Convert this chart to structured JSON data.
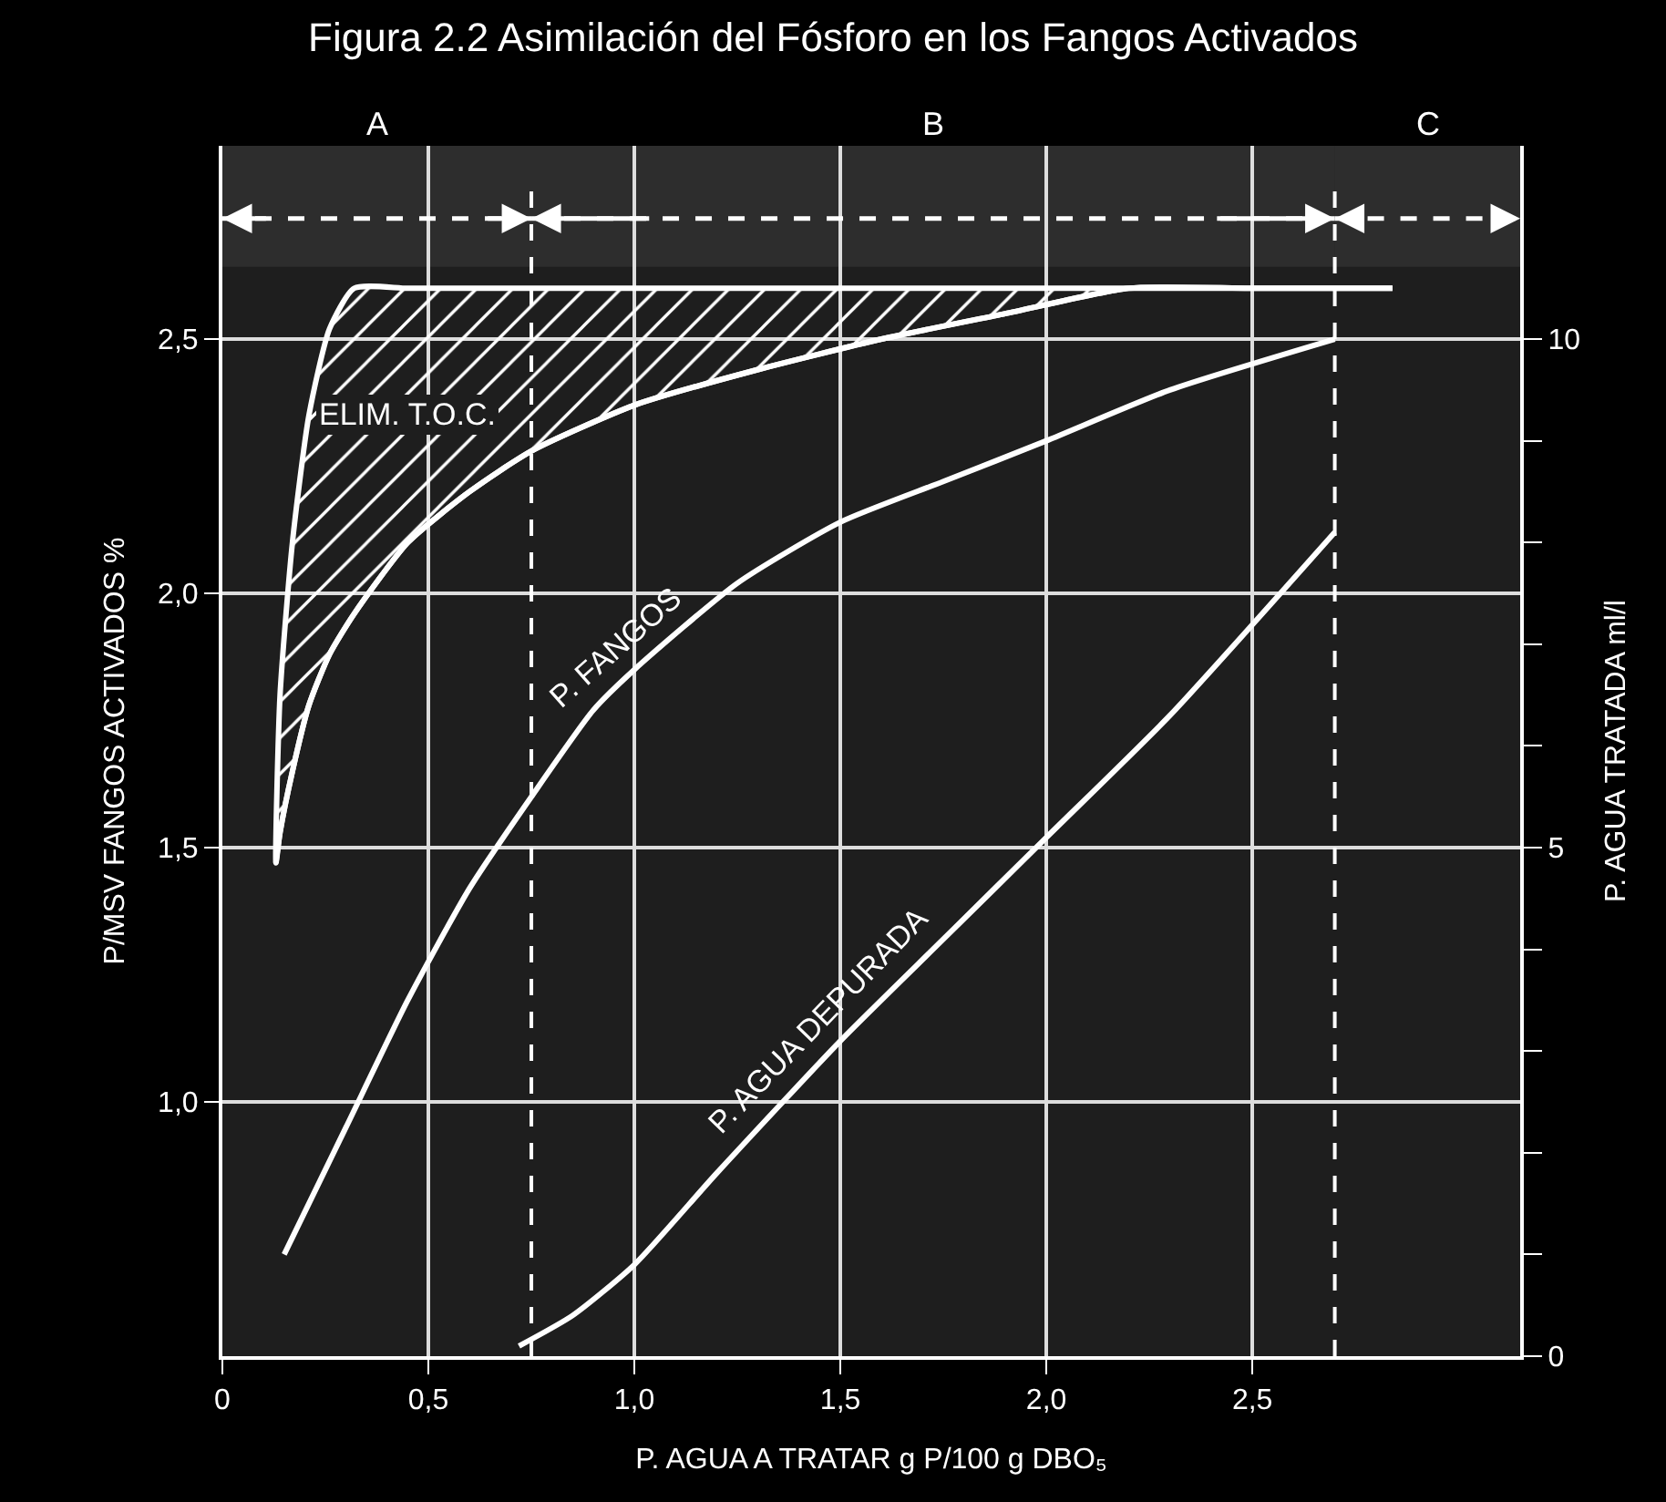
{
  "chart_data": {
    "type": "line",
    "title": "Figura 2.2 Asimilación del Fósforo en los Fangos Activados",
    "xlabel": "P. AGUA A TRATAR g P/100 g DBO₅",
    "ylabel": "P/MSV FANGOS ACTIVADOS %",
    "y2label": "P. AGUA TRATADA ml/l",
    "xlim": [
      0,
      3.15
    ],
    "xticks": [
      0,
      {
        "value": 0.5,
        "label": "0,5"
      },
      {
        "value": 1,
        "label": "1,0"
      },
      {
        "value": 1.5,
        "label": "1,5"
      },
      {
        "value": 2,
        "label": "2,0"
      },
      {
        "value": 2.5,
        "label": "2,5"
      }
    ],
    "ylim": [
      0.5,
      2.88
    ],
    "yticks": [
      {
        "value": 1,
        "label": "1,0"
      },
      {
        "value": 1.5,
        "label": "1,5"
      },
      {
        "value": 2,
        "label": "2,0"
      },
      {
        "value": 2.5,
        "label": "2,5"
      }
    ],
    "y2lim": [
      0,
      11.9
    ],
    "y2ticks": [
      0,
      {
        "value": 1,
        "label": null
      },
      {
        "value": 2,
        "label": null
      },
      {
        "value": 3,
        "label": null
      },
      {
        "value": 4,
        "label": null
      },
      5,
      {
        "value": 6,
        "label": null
      },
      {
        "value": 7,
        "label": null
      },
      {
        "value": 8,
        "label": null
      },
      {
        "value": 9,
        "label": null
      },
      10
    ],
    "grid": true,
    "legend": false,
    "marker": "none",
    "line_style": "solid",
    "series": [
      {
        "name": "ELIM. T.O.C.",
        "color": "#ffffff",
        "x": [
          0.13,
          0.14,
          0.17,
          0.21,
          0.26,
          0.32,
          0.45,
          0.6,
          0.75,
          1.0,
          1.3,
          1.6,
          1.9,
          2.2,
          2.5,
          2.84
        ],
        "values": [
          1.47,
          1.53,
          1.65,
          1.78,
          1.88,
          1.96,
          2.1,
          2.2,
          2.28,
          2.37,
          2.44,
          2.5,
          2.55,
          2.6,
          2.6,
          2.6
        ],
        "lower": [
          1.47,
          1.53,
          1.65,
          1.78,
          1.88,
          1.96,
          2.1,
          2.2,
          2.28,
          2.37,
          2.44,
          2.5,
          2.55,
          2.6,
          2.6,
          2.6
        ],
        "upper": [
          1.47,
          1.8,
          2.1,
          2.35,
          2.52,
          2.6,
          2.6,
          2.6,
          2.6,
          2.6,
          2.6,
          2.6,
          2.6,
          2.6,
          2.6,
          2.6
        ]
      },
      {
        "name": "P. FANGOS",
        "color": "#ffffff",
        "x": [
          0.15,
          0.3,
          0.45,
          0.6,
          0.75,
          0.9,
          1.0,
          1.25,
          1.5,
          1.75,
          2.0,
          2.3,
          2.7
        ],
        "values": [
          0.7,
          0.95,
          1.2,
          1.42,
          1.6,
          1.77,
          1.85,
          2.02,
          2.14,
          2.22,
          2.3,
          2.4,
          2.5
        ]
      },
      {
        "name": "P. AGUA DEPURADA",
        "color": "#ffffff",
        "axis": "y2",
        "x": [
          0.72,
          0.85,
          1.0,
          1.2,
          1.5,
          1.75,
          2.0,
          2.3,
          2.7
        ],
        "values": [
          0.1,
          0.4,
          0.9,
          1.8,
          3.1,
          4.1,
          5.1,
          6.3,
          8.1
        ]
      }
    ],
    "ref_lines": [
      {
        "axis": "x",
        "value": 0.75,
        "line_style": "dashed"
      },
      {
        "axis": "x",
        "value": 2.7,
        "line_style": "dashed"
      }
    ],
    "bands": [
      {
        "axis": "x",
        "from": 0,
        "to": 0.75,
        "label": "A"
      },
      {
        "axis": "x",
        "from": 0.75,
        "to": 2.7,
        "label": "B"
      },
      {
        "axis": "x",
        "from": 2.7,
        "to": 3.15,
        "label": "C"
      }
    ]
  }
}
